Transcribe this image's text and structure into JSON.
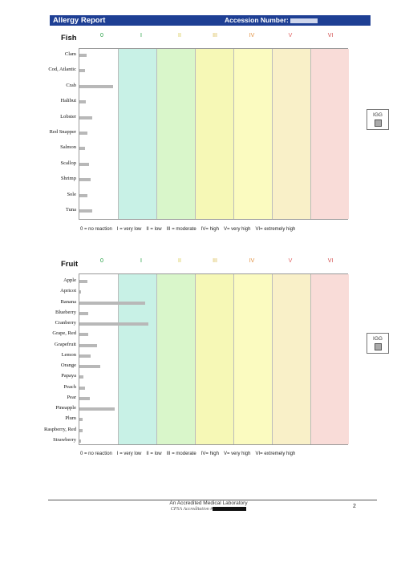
{
  "header": {
    "title": "Allergy Report",
    "accession_label": "Accession Number:"
  },
  "grades": [
    "0",
    "I",
    "II",
    "III",
    "IV",
    "V",
    "VI"
  ],
  "grade_colors": [
    "#1a9a3a",
    "#1a9a3a",
    "#d8c848",
    "#d8b848",
    "#e09040",
    "#e06060",
    "#d04848"
  ],
  "band_colors": [
    "#c8f1e6",
    "#d9f6ca",
    "#f6f8b6",
    "#fbfbc0",
    "#f9f0c8",
    "#f9dcd8"
  ],
  "scale_legend": [
    "0 = no reaction",
    "I = very low",
    "II = low",
    "III = moderate",
    "IV= high",
    "V= very high",
    "VI= extremely high"
  ],
  "igg_label": "IGG",
  "sections": [
    {
      "title": "Fish",
      "items": [
        {
          "label": "Clam",
          "value": 0.18
        },
        {
          "label": "Cod, Atlantic",
          "value": 0.15
        },
        {
          "label": "Crab",
          "value": 0.88
        },
        {
          "label": "Halibut",
          "value": 0.17
        },
        {
          "label": "Lobster",
          "value": 0.33
        },
        {
          "label": "Red Snapper",
          "value": 0.2
        },
        {
          "label": "Salmon",
          "value": 0.15
        },
        {
          "label": "Scallop",
          "value": 0.25
        },
        {
          "label": "Shrimp",
          "value": 0.3
        },
        {
          "label": "Sole",
          "value": 0.2
        },
        {
          "label": "Tuna",
          "value": 0.33
        }
      ]
    },
    {
      "title": "Fruit",
      "items": [
        {
          "label": "Apple",
          "value": 0.2
        },
        {
          "label": "Apricot",
          "value": 0.05
        },
        {
          "label": "Banana",
          "value": 1.7
        },
        {
          "label": "Blueberry",
          "value": 0.22
        },
        {
          "label": "Cranberry",
          "value": 1.8
        },
        {
          "label": "Grape, Red",
          "value": 0.23
        },
        {
          "label": "Grapefruit",
          "value": 0.45
        },
        {
          "label": "Lemon",
          "value": 0.3
        },
        {
          "label": "Orange",
          "value": 0.55
        },
        {
          "label": "Papaya",
          "value": 0.1
        },
        {
          "label": "Peach",
          "value": 0.15
        },
        {
          "label": "Pear",
          "value": 0.28
        },
        {
          "label": "Pineapple",
          "value": 0.92
        },
        {
          "label": "Plum",
          "value": 0.08
        },
        {
          "label": "Raspberry, Red",
          "value": 0.08
        },
        {
          "label": "Strawberry",
          "value": 0.05
        }
      ]
    }
  ],
  "footer": {
    "lab": "An Accredited Medical Laboratory",
    "accreditation": "CPSA Accreditation #",
    "page_number": "2"
  }
}
